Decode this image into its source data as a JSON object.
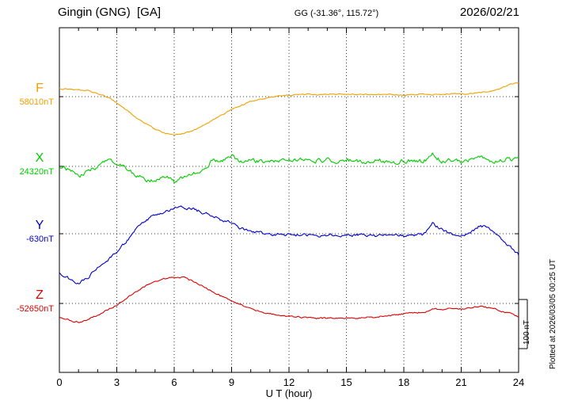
{
  "header": {
    "title": "Gingin (GNG)  [GA]",
    "coords": "GG (-31.36°, 115.72°)",
    "date": "2026/02/21"
  },
  "annotations": {
    "scale_bar_label": "100 nT",
    "plotted_at": "Plotted at 2026/03/05 00:25 UT"
  },
  "chart_data": {
    "type": "line",
    "title": "Gingin (GNG)  [GA] magnetogram 2026/02/21",
    "xlabel": "U T (hour)",
    "xlim": [
      0,
      24
    ],
    "x_ticks": [
      0,
      3,
      6,
      9,
      12,
      15,
      18,
      21,
      24
    ],
    "x_minor_tick_hours": 1,
    "x_step_hours": 0.5,
    "grid": "dotted vertical lines at 3h intervals, dotted horizontal baseline per component",
    "scale": "100 nT per scale bar",
    "legend_position": "left margin, one colored label per trace",
    "series": [
      {
        "name": "F",
        "baseline_label": "58010nT",
        "color": "#f0a000",
        "offsets_nT": [
          16,
          15,
          14,
          13,
          6,
          0,
          -13,
          -27,
          -42,
          -54,
          -66,
          -74,
          -77,
          -75,
          -69,
          -59,
          -48,
          -37,
          -26,
          -18,
          -10,
          -5,
          -2,
          2,
          3,
          4,
          5,
          4,
          5,
          6,
          5,
          4,
          5,
          4,
          5,
          4,
          3,
          4,
          5,
          4,
          5,
          6,
          5,
          6,
          8,
          11,
          16,
          24,
          30
        ]
      },
      {
        "name": "X",
        "baseline_label": "24320nT",
        "color": "#00cc00",
        "offsets_nT": [
          2,
          -6,
          -20,
          -10,
          0,
          14,
          8,
          -6,
          -18,
          -26,
          -30,
          -18,
          -32,
          -22,
          -14,
          -8,
          12,
          10,
          22,
          8,
          12,
          10,
          14,
          9,
          13,
          11,
          15,
          11,
          13,
          9,
          13,
          11,
          9,
          13,
          11,
          9,
          11,
          13,
          9,
          24,
          11,
          13,
          9,
          14,
          16,
          12,
          11,
          14,
          16
        ]
      },
      {
        "name": "Y",
        "baseline_label": "-630nT",
        "color": "#0000cc",
        "offsets_nT": [
          -80,
          -91,
          -101,
          -88,
          -69,
          -56,
          -37,
          -16,
          8,
          27,
          40,
          46,
          51,
          53,
          50,
          43,
          37,
          27,
          24,
          11,
          5,
          2,
          -2,
          0,
          -2,
          -3,
          -2,
          -4,
          -3,
          -2,
          -4,
          -3,
          -2,
          -4,
          -3,
          -2,
          -4,
          -2,
          -3,
          21,
          8,
          -2,
          -5,
          2,
          18,
          8,
          -8,
          -24,
          -43
        ]
      },
      {
        "name": "Z",
        "baseline_label": "-52650nT",
        "color": "#dd0000",
        "offsets_nT": [
          -30,
          -34,
          -38,
          -32,
          -24,
          -14,
          -3,
          10,
          24,
          35,
          45,
          50,
          53,
          54,
          45,
          35,
          24,
          14,
          5,
          -3,
          -11,
          -16,
          -21,
          -24,
          -26,
          -28,
          -29,
          -30,
          -30,
          -30,
          -30,
          -30,
          -29,
          -28,
          -26,
          -24,
          -21,
          -19,
          -18,
          -11,
          -13,
          -10,
          -11,
          -9,
          -6,
          -9,
          -14,
          -20,
          -27
        ]
      }
    ]
  }
}
